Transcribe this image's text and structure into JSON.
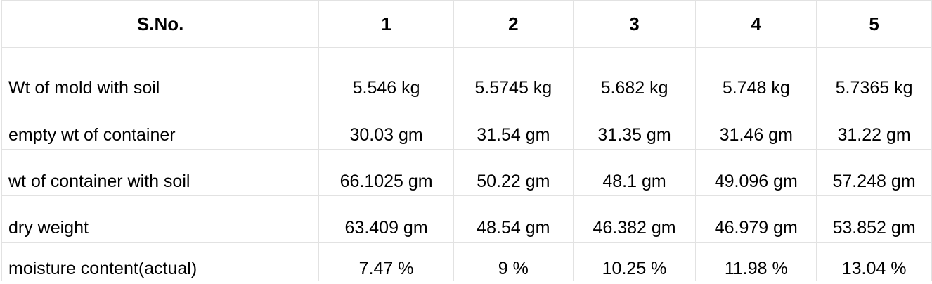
{
  "table": {
    "header": [
      "S.No.",
      "1",
      "2",
      "3",
      "4",
      "5"
    ],
    "rows": [
      {
        "label": "Wt of mold with soil",
        "values": [
          "5.546 kg",
          "5.5745 kg",
          "5.682 kg",
          "5.748 kg",
          "5.7365 kg"
        ]
      },
      {
        "label": "empty wt of container",
        "values": [
          "30.03 gm",
          "31.54 gm",
          "31.35 gm",
          "31.46 gm",
          "31.22 gm"
        ]
      },
      {
        "label": "wt of container with soil",
        "values": [
          "66.1025 gm",
          "50.22 gm",
          "48.1 gm",
          "49.096 gm",
          "57.248 gm"
        ]
      },
      {
        "label": "dry weight",
        "values": [
          "63.409 gm",
          "48.54 gm",
          "46.382 gm",
          "46.979 gm",
          "53.852 gm"
        ]
      },
      {
        "label": "moisture content(actual)",
        "values": [
          "7.47 %",
          "9 %",
          "10.25 %",
          "11.98 %",
          "13.04 %"
        ]
      }
    ]
  }
}
